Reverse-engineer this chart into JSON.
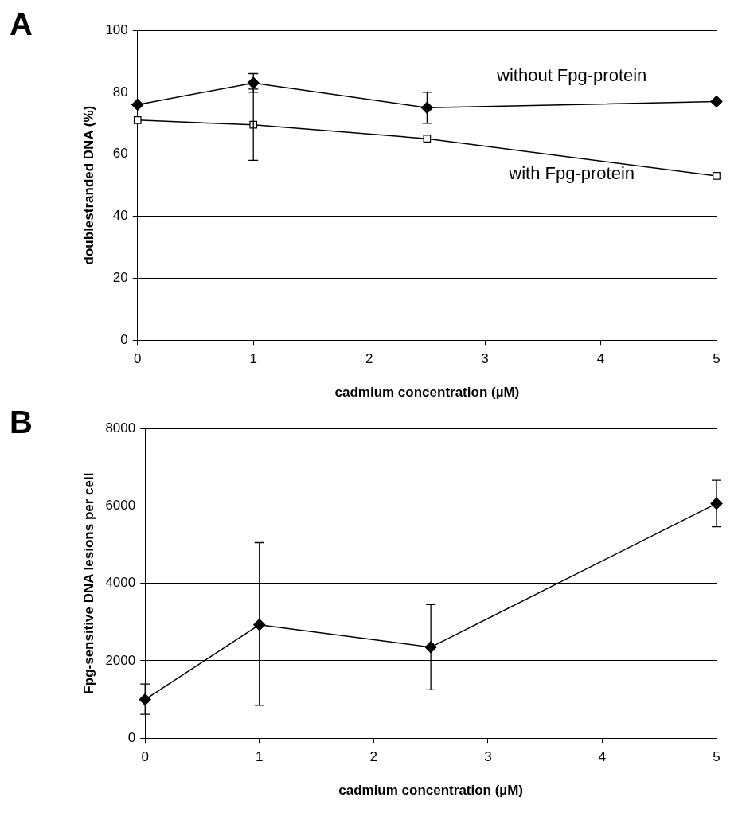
{
  "chart_data": [
    {
      "type": "line",
      "title": "A",
      "xlabel": "cadmium concentration (µM)",
      "ylabel": "doublestranded DNA (%)",
      "x": [
        0,
        1,
        2.5,
        5
      ],
      "xlim": [
        0,
        5
      ],
      "xticks": [
        0,
        1,
        2,
        3,
        4,
        5
      ],
      "ylim": [
        0,
        100
      ],
      "yticks": [
        0,
        20,
        40,
        60,
        80,
        100
      ],
      "grid": "y",
      "legend": false,
      "series": [
        {
          "name": "without Fpg-protein",
          "color": "#000000",
          "marker": "diamond",
          "values": [
            76,
            83,
            75,
            77
          ],
          "errors": [
            null,
            [
              80,
              86
            ],
            [
              70,
              80
            ],
            null
          ]
        },
        {
          "name": "with Fpg-protein",
          "color": "#000000",
          "marker": "square",
          "values": [
            71,
            69.5,
            65,
            53
          ],
          "errors": [
            null,
            [
              58,
              81
            ],
            null,
            null
          ]
        }
      ]
    },
    {
      "type": "line",
      "title": "B",
      "xlabel": "cadmium concentration (µM)",
      "ylabel": "Fpg-sensitive DNA lesions per cell",
      "x": [
        0,
        1,
        2.5,
        5
      ],
      "xlim": [
        0,
        5
      ],
      "xticks": [
        0,
        1,
        2,
        3,
        4,
        5
      ],
      "ylim": [
        0,
        8000
      ],
      "yticks": [
        0,
        2000,
        4000,
        6000,
        8000
      ],
      "grid": "y",
      "legend": false,
      "series": [
        {
          "color": "#000000",
          "marker": "diamond",
          "values": [
            1000,
            2930,
            2350,
            6060
          ],
          "errors": [
            [
              620,
              1400
            ],
            [
              850,
              5050
            ],
            [
              1250,
              3450
            ],
            [
              5460,
              6660
            ]
          ]
        }
      ]
    }
  ]
}
